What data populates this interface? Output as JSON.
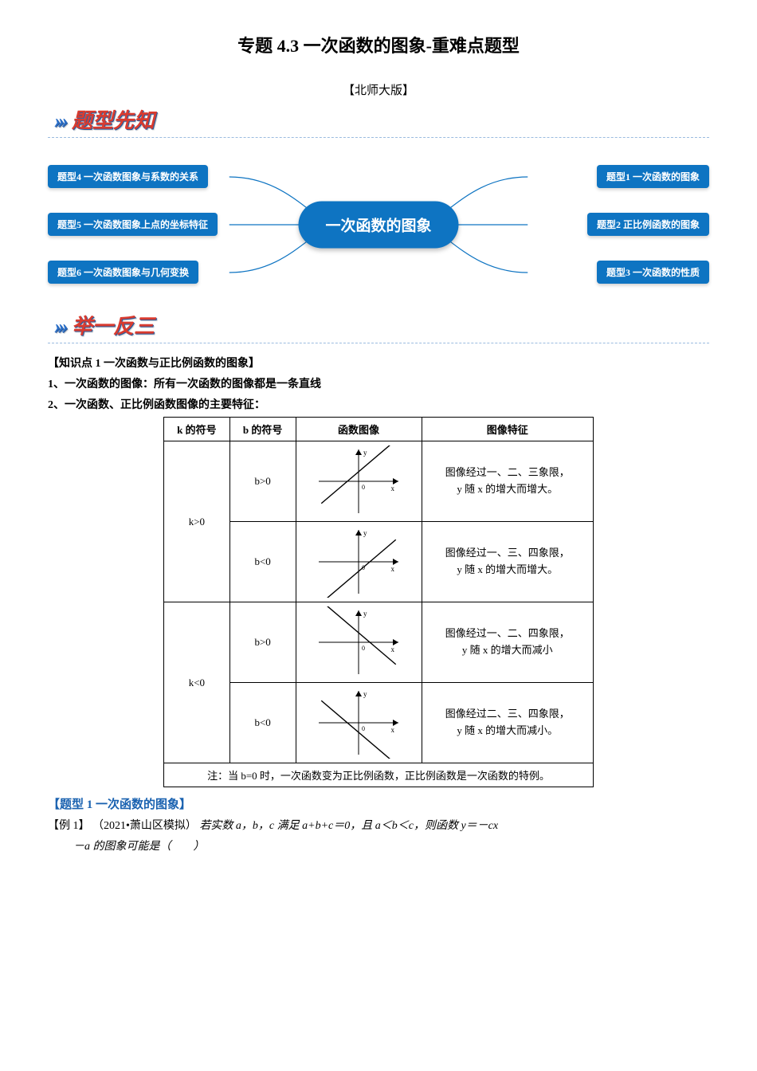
{
  "title": "专题 4.3  一次函数的图象-重难点题型",
  "subtitle": "【北师大版】",
  "headings": {
    "h1": "题型先知",
    "h2": "举一反三"
  },
  "diagram": {
    "center": "一次函数的图象",
    "center_color": "#0e74c2",
    "line_color": "#0e74c2",
    "node_color": "#0e74c2",
    "node_text_color": "#ffffff",
    "left": [
      {
        "label": "题型4  一次函数图象与系数的关系"
      },
      {
        "label": "题型5  一次函数图象上点的坐标特征"
      },
      {
        "label": "题型6 一次函数图象与几何变换"
      }
    ],
    "right": [
      {
        "label": "题型1  一次函数的图象"
      },
      {
        "label": "题型2  正比例函数的图象"
      },
      {
        "label": "题型3  一次函数的性质"
      }
    ]
  },
  "knowledge_head": "【知识点 1 一次函数与正比例函数的图象】",
  "points": {
    "p1": "1、一次函数的图像：所有一次函数的图像都是一条直线",
    "p2": "2、一次函数、正比例函数图像的主要特征："
  },
  "table": {
    "headers": [
      "k 的符号",
      "b 的符号",
      "函数图像",
      "图像特征"
    ],
    "rows": [
      {
        "k": "k>0",
        "b": "b>0",
        "slope": 1,
        "yint": 1,
        "feat_l1": "图像经过一、二、三象限，",
        "feat_l2": "y 随 x 的增大而增大。"
      },
      {
        "k": "k>0",
        "b": "b<0",
        "slope": 1,
        "yint": -1,
        "feat_l1": "图像经过一、三、四象限，",
        "feat_l2": "y 随 x 的增大而增大。"
      },
      {
        "k": "k<0",
        "b": "b>0",
        "slope": -1,
        "yint": 1,
        "feat_l1": "图像经过一、二、四象限，",
        "feat_l2": "y 随 x 的增大而减小"
      },
      {
        "k": "k<0",
        "b": "b<0",
        "slope": -1,
        "yint": -1,
        "feat_l1": "图像经过二、三、四象限，",
        "feat_l2": "y 随 x 的增大而减小。"
      }
    ],
    "note": "注：当 b=0 时，一次函数变为正比例函数，正比例函数是一次函数的特例。",
    "axis_style": {
      "width": 110,
      "height": 90,
      "stroke": "#000000",
      "stroke_width": 1,
      "line_color": "#000000"
    }
  },
  "topic1_head": "【题型 1  一次函数的图象】",
  "example": {
    "label": "【例 1】",
    "source": "（2021•萧山区模拟）",
    "q_part1": "若实数 a，b，c 满足 a+b+c＝0，且 a＜b＜c，则函数 y＝－cx",
    "q_part2": "－a 的图象可能是（　　）"
  },
  "colors": {
    "heading_red": "#d93b2f",
    "heading_blue_shadow": "#2a5a9c",
    "arrow_blue": "#2a6fc9",
    "rule": "#9bbce0",
    "section_blue": "#1a62b0"
  }
}
